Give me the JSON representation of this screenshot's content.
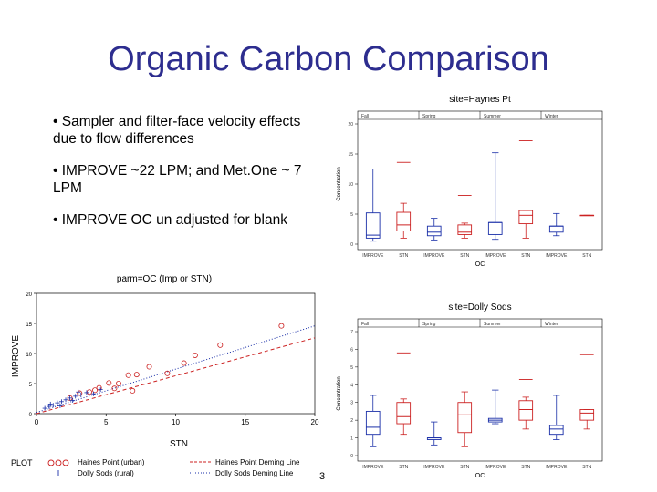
{
  "slide": {
    "title": "Organic Carbon Comparison",
    "bullets": [
      "• Sampler and filter-face velocity effects due to flow differences",
      "• IMPROVE ~22 LPM; and Met.One ~ 7 LPM",
      "• IMPROVE OC un adjusted for blank"
    ],
    "page_fragment": "3",
    "colors": {
      "title": "#2d2d8f",
      "red": "#cc2222",
      "blue": "#1a2fa8"
    }
  },
  "chart_data": [
    {
      "type": "scatter",
      "title": "parm=OC (Imp or STN)",
      "xlabel": "STN",
      "ylabel": "IMPROVE",
      "xlim": [
        0,
        20
      ],
      "ylim": [
        0,
        20
      ],
      "xticks": [
        "0",
        "5",
        "10",
        "15",
        "20"
      ],
      "yticks": [
        "0",
        "5",
        "10",
        "15",
        "20"
      ],
      "series": [
        {
          "name": "Haines Point (urban)",
          "color": "#cc2222",
          "marker": "o",
          "x": [
            2.4,
            3.1,
            3.8,
            4.5,
            5.2,
            5.9,
            6.6,
            7.2,
            8.1,
            9.4,
            10.6,
            11.4,
            13.2,
            17.6,
            4.2,
            5.6,
            6.9
          ],
          "y": [
            2.6,
            3.4,
            3.6,
            4.3,
            5.1,
            5.0,
            6.4,
            6.5,
            7.8,
            6.7,
            8.4,
            9.7,
            11.4,
            14.6,
            3.9,
            4.2,
            3.8
          ]
        },
        {
          "name": "Dolly Sods (rural)",
          "color": "#1a2fa8",
          "marker": "+",
          "x": [
            0.6,
            0.9,
            1.2,
            1.5,
            1.8,
            2.1,
            2.4,
            2.8,
            3.2,
            3.6,
            4.1,
            4.6,
            1.0,
            1.7,
            2.6,
            3.0
          ],
          "y": [
            0.9,
            1.2,
            1.4,
            1.8,
            2.0,
            2.3,
            2.6,
            2.9,
            3.1,
            3.5,
            3.3,
            4.0,
            1.6,
            1.3,
            2.2,
            3.6
          ]
        }
      ],
      "fit_lines": [
        {
          "name": "Haines Point Deming Line",
          "color": "#cc2222",
          "style": "dashed",
          "x": [
            0,
            20
          ],
          "y": [
            0,
            12.6
          ]
        },
        {
          "name": "Dolly Sods Deming Line",
          "color": "#1a2fa8",
          "style": "dotted",
          "x": [
            0,
            20
          ],
          "y": [
            0.2,
            14.6
          ]
        }
      ],
      "legend": {
        "label": "PLOT",
        "placement": "bottom"
      }
    },
    {
      "type": "box",
      "title": "site=Haynes Pt",
      "seasons": [
        "Fall",
        "Spring",
        "Summer",
        "Winter"
      ],
      "categories": [
        "IMPROVE",
        "STN",
        "IMPROVE",
        "STN",
        "IMPROVE",
        "STN",
        "IMPROVE",
        "STN"
      ],
      "xlabel": "OC",
      "ylabel": "Concentration",
      "ylim": [
        0,
        20
      ],
      "yticks": [
        "0",
        "5",
        "10",
        "15",
        "20"
      ],
      "boxes": [
        {
          "color": "#1a2fa8",
          "min": 0.5,
          "q1": 1.0,
          "median": 1.5,
          "q3": 5.2,
          "max": 12.5
        },
        {
          "color": "#cc2222",
          "min": 1.0,
          "q1": 2.2,
          "median": 3.2,
          "q3": 5.3,
          "max": 6.8,
          "outliers": [
            13.6
          ]
        },
        {
          "color": "#1a2fa8",
          "min": 0.7,
          "q1": 1.4,
          "median": 2.0,
          "q3": 3.0,
          "max": 4.3
        },
        {
          "color": "#cc2222",
          "min": 1.0,
          "q1": 1.6,
          "median": 2.0,
          "q3": 3.2,
          "max": 3.5,
          "outliers": [
            8.1
          ]
        },
        {
          "color": "#1a2fa8",
          "min": 0.8,
          "q1": 1.6,
          "median": 3.6,
          "q3": 3.6,
          "max": 15.2
        },
        {
          "color": "#cc2222",
          "min": 1.0,
          "q1": 3.4,
          "median": 4.8,
          "q3": 5.6,
          "max": 5.6,
          "outliers": [
            17.2
          ]
        },
        {
          "color": "#1a2fa8",
          "min": 1.4,
          "q1": 2.0,
          "median": 3.0,
          "q3": 3.0,
          "max": 5.1
        },
        {
          "color": "#cc2222",
          "min": 4.8,
          "q1": 4.8,
          "median": 4.8,
          "q3": 4.8,
          "max": 4.8
        }
      ]
    },
    {
      "type": "box",
      "title": "site=Dolly Sods",
      "seasons": [
        "Fall",
        "Spring",
        "Summer",
        "Winter"
      ],
      "categories": [
        "IMPROVE",
        "STN",
        "IMPROVE",
        "STN",
        "IMPROVE",
        "STN",
        "IMPROVE",
        "STN"
      ],
      "xlabel": "OC",
      "ylabel": "Concentration",
      "ylim": [
        0,
        7
      ],
      "yticks": [
        "0",
        "1",
        "2",
        "3",
        "4",
        "5",
        "6",
        "7"
      ],
      "boxes": [
        {
          "color": "#1a2fa8",
          "min": 0.5,
          "q1": 1.2,
          "median": 1.6,
          "q3": 2.5,
          "max": 3.4
        },
        {
          "color": "#cc2222",
          "min": 1.2,
          "q1": 1.8,
          "median": 2.2,
          "q3": 3.0,
          "max": 3.2,
          "outliers": [
            5.8
          ]
        },
        {
          "color": "#1a2fa8",
          "min": 0.6,
          "q1": 0.9,
          "median": 1.0,
          "q3": 1.0,
          "max": 1.9
        },
        {
          "color": "#cc2222",
          "min": 0.5,
          "q1": 1.3,
          "median": 2.3,
          "q3": 3.0,
          "max": 3.6
        },
        {
          "color": "#1a2fa8",
          "min": 1.8,
          "q1": 1.9,
          "median": 2.0,
          "q3": 2.1,
          "max": 3.7
        },
        {
          "color": "#cc2222",
          "min": 1.5,
          "q1": 2.0,
          "median": 2.6,
          "q3": 3.1,
          "max": 3.3,
          "outliers": [
            4.3
          ]
        },
        {
          "color": "#1a2fa8",
          "min": 0.9,
          "q1": 1.2,
          "median": 1.5,
          "q3": 1.7,
          "max": 3.4
        },
        {
          "color": "#cc2222",
          "min": 1.5,
          "q1": 2.0,
          "median": 2.4,
          "q3": 2.6,
          "max": 2.6,
          "outliers": [
            5.7
          ]
        }
      ]
    }
  ]
}
